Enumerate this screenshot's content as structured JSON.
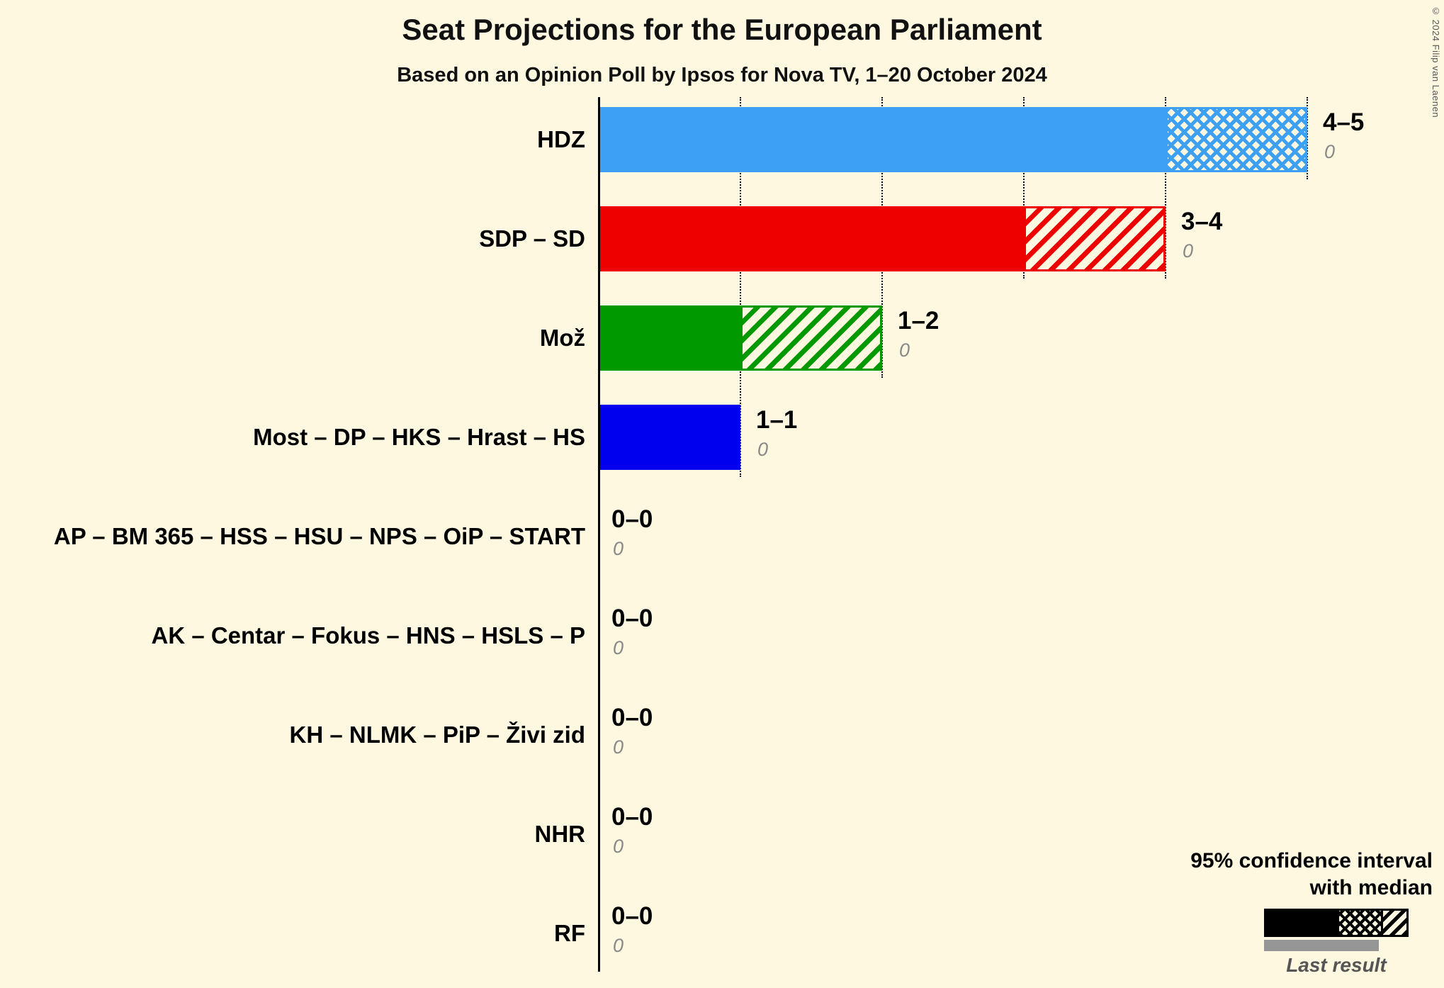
{
  "title": "Seat Projections for the European Parliament",
  "subtitle": "Based on an Opinion Poll by Ipsos for Nova TV, 1–20 October 2024",
  "copyright": "© 2024 Filip van Laenen",
  "legend": {
    "ci_line1": "95% confidence interval",
    "ci_line2": "with median",
    "last_result_label": "Last result"
  },
  "chart_data": {
    "type": "bar",
    "orientation": "horizontal",
    "xlim": [
      0,
      5
    ],
    "grid": "dotted-guides-at-medians-and-maxima",
    "legend_position": "bottom-right",
    "categories": [
      "HDZ",
      "SDP – SD",
      "Mož",
      "Most – DP – HKS – Hrast – HS",
      "AP – BM 365 – HSS – HSU – NPS – OiP – START",
      "AK – Centar – Fokus – HNS – HSLS – P",
      "KH – NLMK – PiP – Živi zid",
      "NHR",
      "RF"
    ],
    "series": [
      {
        "name": "HDZ",
        "ci_low": 4,
        "ci_high": 5,
        "range_label": "4–5",
        "last_result": 0,
        "last_result_label": "0",
        "color": "#3EA0F2",
        "hatch": "cross"
      },
      {
        "name": "SDP – SD",
        "ci_low": 3,
        "ci_high": 4,
        "range_label": "3–4",
        "last_result": 0,
        "last_result_label": "0",
        "color": "#EE0000",
        "hatch": "diagonal"
      },
      {
        "name": "Mož",
        "ci_low": 1,
        "ci_high": 2,
        "range_label": "1–2",
        "last_result": 0,
        "last_result_label": "0",
        "color": "#009900",
        "hatch": "diagonal"
      },
      {
        "name": "Most – DP – HKS – Hrast – HS",
        "ci_low": 1,
        "ci_high": 1,
        "range_label": "1–1",
        "last_result": 0,
        "last_result_label": "0",
        "color": "#0000EE",
        "hatch": null
      },
      {
        "name": "AP – BM 365 – HSS – HSU – NPS – OiP – START",
        "ci_low": 0,
        "ci_high": 0,
        "range_label": "0–0",
        "last_result": 0,
        "last_result_label": "0",
        "color": "#000000",
        "hatch": null
      },
      {
        "name": "AK – Centar – Fokus – HNS – HSLS – P",
        "ci_low": 0,
        "ci_high": 0,
        "range_label": "0–0",
        "last_result": 0,
        "last_result_label": "0",
        "color": "#000000",
        "hatch": null
      },
      {
        "name": "KH – NLMK – PiP – Živi zid",
        "ci_low": 0,
        "ci_high": 0,
        "range_label": "0–0",
        "last_result": 0,
        "last_result_label": "0",
        "color": "#000000",
        "hatch": null
      },
      {
        "name": "NHR",
        "ci_low": 0,
        "ci_high": 0,
        "range_label": "0–0",
        "last_result": 0,
        "last_result_label": "0",
        "color": "#000000",
        "hatch": null
      },
      {
        "name": "RF",
        "ci_low": 0,
        "ci_high": 0,
        "range_label": "0–0",
        "last_result": 0,
        "last_result_label": "0",
        "color": "#000000",
        "hatch": null
      }
    ]
  }
}
